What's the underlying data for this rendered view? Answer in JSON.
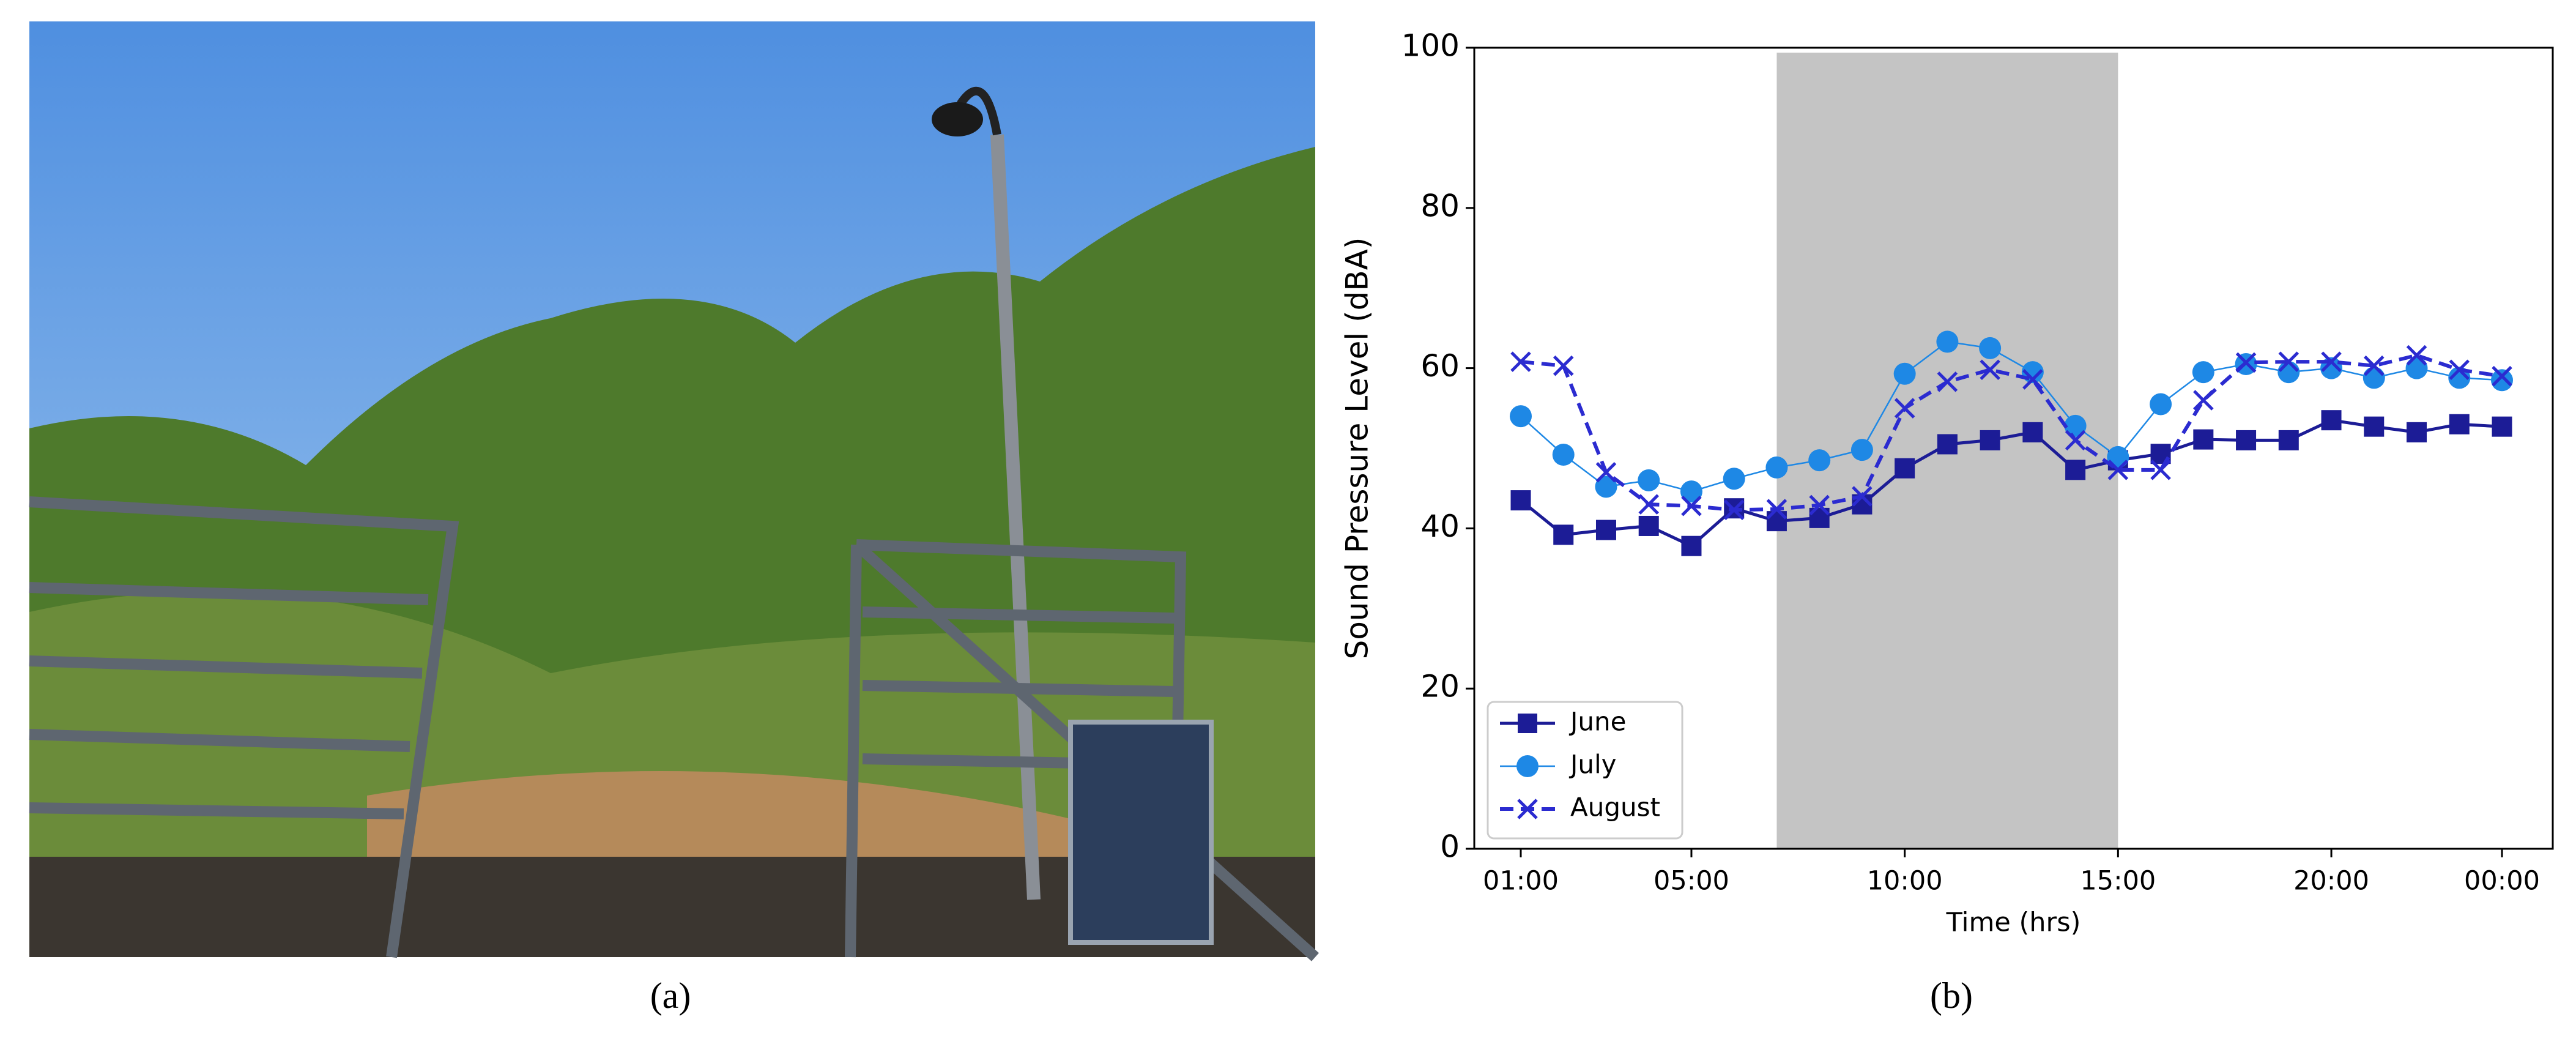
{
  "figure": {
    "caption_a": "(a)"
  },
  "chart_data": {
    "type": "line",
    "caption": "(b)",
    "xlabel": "Time (hrs)",
    "ylabel": "Sound Pressure Level (dBA)",
    "categories": [
      "01:00",
      null,
      null,
      null,
      "05:00",
      null,
      null,
      null,
      null,
      "10:00",
      null,
      null,
      null,
      null,
      "15:00",
      null,
      null,
      null,
      null,
      "20:00",
      null,
      null,
      null,
      "00:00"
    ],
    "ylim": [
      0,
      100
    ],
    "yticks": [
      0,
      20,
      40,
      60,
      80,
      100
    ],
    "grid": false,
    "legend": "lower left",
    "shaded_span": [
      6,
      14
    ],
    "shaded_color": "#c4c4c4",
    "series": [
      {
        "name": "June",
        "color": "#1c1c96",
        "marker": "square",
        "linestyle": "solid",
        "values": [
          43.5,
          39.2,
          39.8,
          40.3,
          37.8,
          42.5,
          40.9,
          41.3,
          43,
          47.5,
          50.5,
          51,
          52,
          47.3,
          48.5,
          49.3,
          51.1,
          51,
          51,
          53.5,
          52.7,
          52,
          53,
          52.7
        ]
      },
      {
        "name": "July",
        "color": "#1e88e5",
        "marker": "circle",
        "linestyle": "thin",
        "values": [
          54,
          49.2,
          45.2,
          46,
          44.6,
          46.2,
          47.6,
          48.5,
          49.8,
          59.3,
          63.3,
          62.5,
          59.5,
          52.8,
          48.9,
          55.5,
          59.5,
          60.5,
          59.5,
          60,
          58.8,
          60,
          58.8,
          58.5
        ]
      },
      {
        "name": "August",
        "color": "#2b2bd0",
        "marker": "x",
        "linestyle": "dashed",
        "values": [
          60.8,
          60.3,
          47,
          43,
          42.8,
          42.3,
          42.4,
          42.9,
          44,
          55,
          58.3,
          59.8,
          58.6,
          51,
          47.3,
          47.3,
          56,
          60.7,
          60.8,
          60.8,
          60.3,
          61.6,
          59.8,
          59
        ]
      }
    ]
  }
}
